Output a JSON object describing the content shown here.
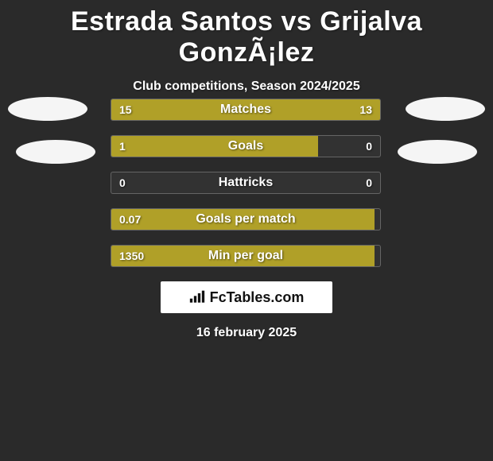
{
  "title": "Estrada Santos vs Grijalva GonzÃ¡lez",
  "subtitle": "Club competitions, Season 2024/2025",
  "date": "16 february 2025",
  "logo_text": "FcTables.com",
  "colors": {
    "background": "#2a2a2a",
    "bar_fill": "#b0a028",
    "bar_border": "rgba(255,255,255,0.25)",
    "text": "#ffffff",
    "logo_bg": "#ffffff",
    "logo_text": "#111111",
    "avatar_bg": "#f5f5f5"
  },
  "bars": [
    {
      "label": "Matches",
      "left_val": "15",
      "right_val": "13",
      "left_pct": 53.6,
      "right_pct": 46.4
    },
    {
      "label": "Goals",
      "left_val": "1",
      "right_val": "0",
      "left_pct": 77.0,
      "right_pct": 0
    },
    {
      "label": "Hattricks",
      "left_val": "0",
      "right_val": "0",
      "left_pct": 0,
      "right_pct": 0
    },
    {
      "label": "Goals per match",
      "left_val": "0.07",
      "right_val": "",
      "left_pct": 98.0,
      "right_pct": 0
    },
    {
      "label": "Min per goal",
      "left_val": "1350",
      "right_val": "",
      "left_pct": 98.0,
      "right_pct": 0
    }
  ]
}
